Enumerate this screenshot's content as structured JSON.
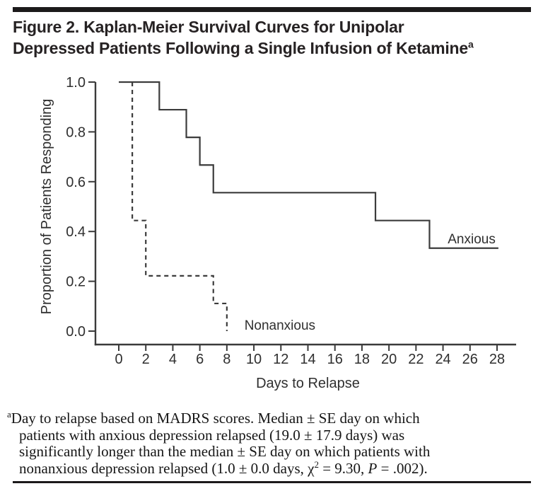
{
  "header": {
    "title_line1": "Figure 2. Kaplan-Meier Survival Curves for Unipolar",
    "title_line2": "Depressed Patients Following a Single Infusion of Ketamine",
    "title_superscript": "a"
  },
  "chart_data": {
    "type": "line",
    "variant": "kaplan-meier-step",
    "title": "",
    "xlabel": "Days to Relapse",
    "ylabel": "Proportion of Patients Responding",
    "xlim": [
      0,
      28
    ],
    "ylim": [
      0.0,
      1.0
    ],
    "xticks": [
      0,
      2,
      4,
      6,
      8,
      10,
      12,
      14,
      16,
      18,
      20,
      22,
      24,
      26,
      28
    ],
    "yticks": [
      1.0,
      0.8,
      0.6,
      0.4,
      0.2,
      0.0
    ],
    "grid": false,
    "legend_position": "inline-annotations",
    "series": [
      {
        "name": "Anxious",
        "line_style": "solid",
        "color": "#3c3c3c",
        "label_anchor": {
          "x": 24.35,
          "y": 0.352
        },
        "points": [
          [
            0,
            1.0
          ],
          [
            3,
            1.0
          ],
          [
            3,
            0.889
          ],
          [
            5,
            0.889
          ],
          [
            5,
            0.778
          ],
          [
            6,
            0.778
          ],
          [
            6,
            0.667
          ],
          [
            7,
            0.667
          ],
          [
            7,
            0.556
          ],
          [
            19,
            0.556
          ],
          [
            19,
            0.444
          ],
          [
            23,
            0.444
          ],
          [
            23,
            0.333
          ],
          [
            28.1,
            0.333
          ]
        ]
      },
      {
        "name": "Nonanxious",
        "line_style": "dashed",
        "color": "#3c3c3c",
        "label_anchor": {
          "x": 9.3,
          "y": 0.006
        },
        "points": [
          [
            1,
            1.0
          ],
          [
            1,
            0.444
          ],
          [
            2,
            0.444
          ],
          [
            2,
            0.222
          ],
          [
            7,
            0.222
          ],
          [
            7,
            0.111
          ],
          [
            8,
            0.111
          ],
          [
            8,
            0.0
          ]
        ]
      }
    ]
  },
  "footnote": {
    "lines": [
      [
        {
          "t": "a",
          "s": "sup"
        },
        {
          "t": "Day to relapse based on MADRS scores. Median ± SE day on which"
        }
      ],
      [
        {
          "t": "patients with anxious depression relapsed (19.0 ± 17.9 days) was"
        }
      ],
      [
        {
          "t": "significantly longer than the median ± SE day on which patients with"
        }
      ],
      [
        {
          "t": "nonanxious depression relapsed (1.0 ± 0.0 days, χ"
        },
        {
          "t": "2",
          "s": "sup"
        },
        {
          "t": " = 9.30, "
        },
        {
          "t": "P",
          "s": "i"
        },
        {
          "t": " = .002)."
        }
      ]
    ]
  },
  "colors": {
    "rule": "#1c1a1b",
    "title_text": "#262223",
    "chart_line": "#3c3c3c",
    "chart_text": "#2f2f2f",
    "footnote_text": "#161616"
  }
}
